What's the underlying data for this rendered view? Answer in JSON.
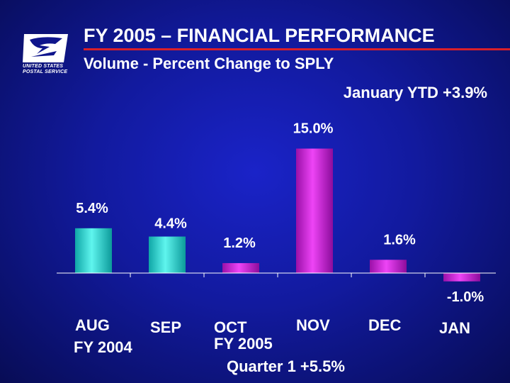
{
  "header": {
    "title": "FY 2005 – FINANCIAL PERFORMANCE",
    "subtitle": "Volume - Percent Change to SPLY",
    "ytd_note": "January YTD +3.9%",
    "logo_text_1": "UNITED STATES",
    "logo_text_2": "POSTAL SERVICE"
  },
  "chart_data": {
    "type": "bar",
    "categories": [
      "AUG",
      "SEP",
      "OCT",
      "NOV",
      "DEC",
      "JAN"
    ],
    "values": [
      5.4,
      4.4,
      1.2,
      15.0,
      1.6,
      -1.0
    ],
    "value_labels": [
      "5.4%",
      "4.4%",
      "1.2%",
      "15.0%",
      "1.6%",
      "-1.0%"
    ],
    "fiscal_year_labels": [
      "FY 2004",
      "FY 2005"
    ],
    "annotation": "Quarter 1 +5.5%",
    "ylim": [
      -1.5,
      15.5
    ],
    "grid": false,
    "colors": {
      "FY 2004": "#22d0c8",
      "FY 2005": "#cc22d6"
    }
  }
}
